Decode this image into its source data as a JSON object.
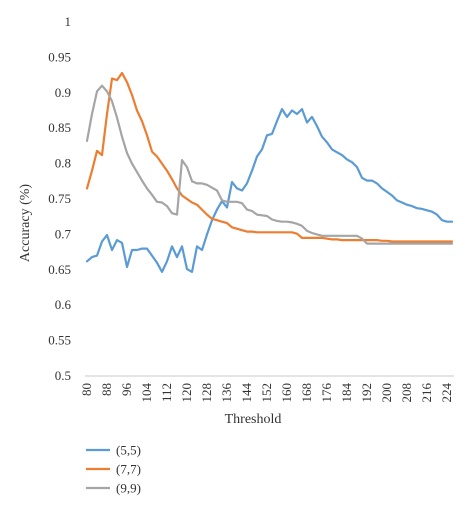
{
  "chart_data": {
    "type": "line",
    "xlabel": "Threshold",
    "ylabel": "Accuracy (%)",
    "xlim": [
      80,
      226
    ],
    "ylim": [
      0.5,
      1
    ],
    "y_ticks": [
      "0.5",
      "0.55",
      "0.6",
      "0.65",
      "0.7",
      "0.75",
      "0.8",
      "0.85",
      "0.9",
      "0.95",
      "1"
    ],
    "x_ticks": [
      "80",
      "88",
      "96",
      "104",
      "112",
      "120",
      "128",
      "136",
      "144",
      "152",
      "160",
      "168",
      "176",
      "184",
      "192",
      "200",
      "208",
      "216",
      "224"
    ],
    "grid": false,
    "legend_position": "bottom-left",
    "series": [
      {
        "name": "(5,5)",
        "color": "#5b9bd5",
        "x": [
          80,
          82,
          84,
          86,
          88,
          90,
          92,
          94,
          96,
          98,
          100,
          102,
          104,
          106,
          108,
          110,
          112,
          114,
          116,
          118,
          120,
          122,
          124,
          126,
          128,
          130,
          132,
          134,
          136,
          138,
          140,
          142,
          144,
          146,
          148,
          150,
          152,
          154,
          156,
          158,
          160,
          162,
          164,
          166,
          168,
          170,
          172,
          174,
          176,
          178,
          180,
          182,
          184,
          186,
          188,
          190,
          192,
          194,
          196,
          198,
          200,
          202,
          204,
          206,
          208,
          210,
          212,
          214,
          216,
          218,
          220,
          222,
          224,
          226
        ],
        "y": [
          0.662,
          0.668,
          0.67,
          0.69,
          0.699,
          0.678,
          0.692,
          0.688,
          0.654,
          0.678,
          0.678,
          0.68,
          0.68,
          0.67,
          0.66,
          0.647,
          0.662,
          0.683,
          0.668,
          0.683,
          0.651,
          0.647,
          0.683,
          0.678,
          0.7,
          0.72,
          0.735,
          0.747,
          0.738,
          0.774,
          0.765,
          0.762,
          0.772,
          0.79,
          0.81,
          0.82,
          0.84,
          0.842,
          0.86,
          0.877,
          0.866,
          0.875,
          0.87,
          0.877,
          0.858,
          0.866,
          0.853,
          0.838,
          0.83,
          0.82,
          0.816,
          0.812,
          0.806,
          0.802,
          0.795,
          0.78,
          0.776,
          0.776,
          0.772,
          0.765,
          0.76,
          0.755,
          0.748,
          0.745,
          0.742,
          0.74,
          0.737,
          0.736,
          0.734,
          0.732,
          0.728,
          0.72,
          0.718,
          0.718
        ]
      },
      {
        "name": "(7,7)",
        "color": "#ed7d31",
        "x": [
          80,
          82,
          84,
          86,
          88,
          90,
          92,
          94,
          96,
          98,
          100,
          102,
          104,
          106,
          108,
          110,
          112,
          114,
          116,
          118,
          120,
          122,
          124,
          126,
          128,
          130,
          132,
          134,
          136,
          138,
          140,
          142,
          144,
          146,
          148,
          150,
          152,
          154,
          156,
          158,
          160,
          162,
          164,
          166,
          168,
          170,
          172,
          174,
          176,
          178,
          180,
          182,
          184,
          186,
          188,
          190,
          192,
          194,
          196,
          198,
          200,
          202,
          204,
          206,
          208,
          210,
          212,
          214,
          216,
          218,
          220,
          222,
          224,
          226
        ],
        "y": [
          0.765,
          0.79,
          0.818,
          0.812,
          0.87,
          0.92,
          0.918,
          0.928,
          0.915,
          0.897,
          0.875,
          0.86,
          0.84,
          0.817,
          0.81,
          0.8,
          0.79,
          0.778,
          0.765,
          0.755,
          0.75,
          0.745,
          0.742,
          0.735,
          0.728,
          0.722,
          0.72,
          0.718,
          0.716,
          0.71,
          0.708,
          0.706,
          0.704,
          0.704,
          0.703,
          0.703,
          0.703,
          0.703,
          0.703,
          0.703,
          0.703,
          0.703,
          0.701,
          0.695,
          0.695,
          0.695,
          0.695,
          0.695,
          0.694,
          0.693,
          0.693,
          0.692,
          0.692,
          0.692,
          0.692,
          0.692,
          0.692,
          0.692,
          0.692,
          0.691,
          0.691,
          0.69,
          0.69,
          0.69,
          0.69,
          0.69,
          0.69,
          0.69,
          0.69,
          0.69,
          0.69,
          0.69,
          0.69,
          0.69
        ]
      },
      {
        "name": "(9,9)",
        "color": "#a5a5a5",
        "x": [
          80,
          82,
          84,
          86,
          88,
          90,
          92,
          94,
          96,
          98,
          100,
          102,
          104,
          106,
          108,
          110,
          112,
          114,
          116,
          118,
          120,
          122,
          124,
          126,
          128,
          130,
          132,
          134,
          136,
          138,
          140,
          142,
          144,
          146,
          148,
          150,
          152,
          154,
          156,
          158,
          160,
          162,
          164,
          166,
          168,
          170,
          172,
          174,
          176,
          178,
          180,
          182,
          184,
          186,
          188,
          190,
          192,
          194,
          196,
          198,
          200,
          202,
          204,
          206,
          208,
          210,
          212,
          214,
          216,
          218,
          220,
          222,
          224,
          226
        ],
        "y": [
          0.832,
          0.87,
          0.902,
          0.91,
          0.902,
          0.888,
          0.865,
          0.838,
          0.815,
          0.8,
          0.788,
          0.776,
          0.765,
          0.756,
          0.746,
          0.745,
          0.74,
          0.73,
          0.728,
          0.805,
          0.795,
          0.775,
          0.772,
          0.772,
          0.77,
          0.766,
          0.762,
          0.748,
          0.746,
          0.746,
          0.746,
          0.744,
          0.735,
          0.733,
          0.728,
          0.727,
          0.726,
          0.721,
          0.719,
          0.718,
          0.718,
          0.717,
          0.715,
          0.712,
          0.705,
          0.702,
          0.7,
          0.698,
          0.698,
          0.698,
          0.698,
          0.698,
          0.698,
          0.698,
          0.698,
          0.694,
          0.687,
          0.687,
          0.687,
          0.687,
          0.687,
          0.687,
          0.687,
          0.687,
          0.687,
          0.687,
          0.687,
          0.687,
          0.687,
          0.687,
          0.687,
          0.687,
          0.687,
          0.687
        ]
      }
    ]
  }
}
